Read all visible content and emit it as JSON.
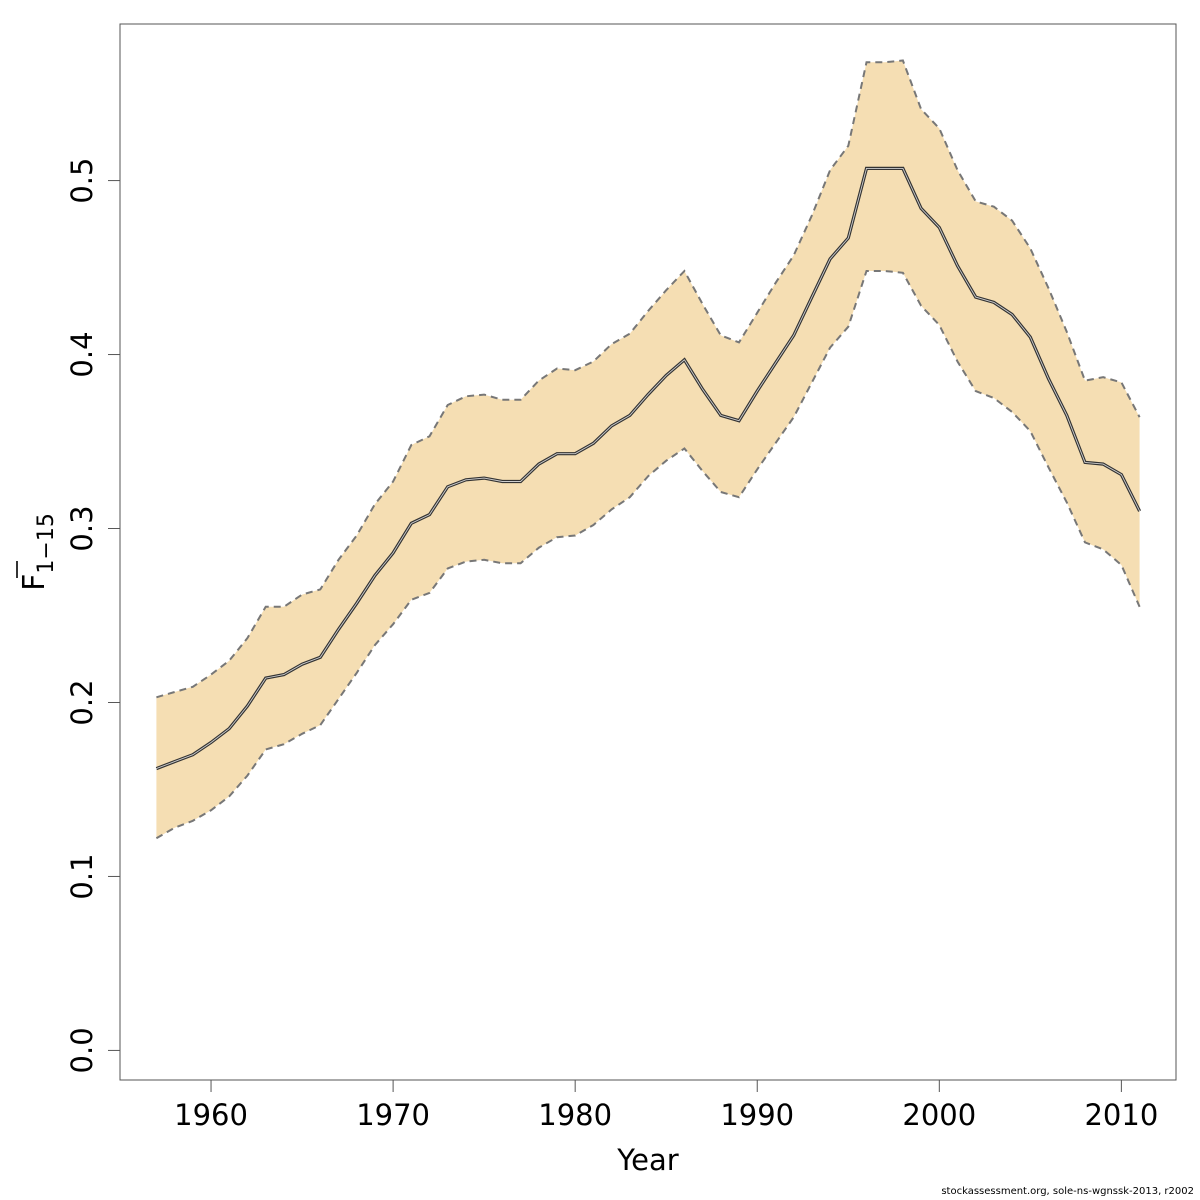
{
  "chart_data": {
    "type": "area",
    "xlabel": "Year",
    "ylabel_main": "F",
    "ylabel_sub": "1−15",
    "xlim": [
      1955,
      2013
    ],
    "ylim": [
      -0.017,
      0.59
    ],
    "xticks": [
      1960,
      1970,
      1980,
      1990,
      2000,
      2010
    ],
    "xtick_labels": [
      "1960",
      "1970",
      "1980",
      "1990",
      "2000",
      "2010"
    ],
    "yticks": [
      0.0,
      0.1,
      0.2,
      0.3,
      0.4,
      0.5
    ],
    "ytick_labels": [
      "0.0",
      "0.1",
      "0.2",
      "0.3",
      "0.4",
      "0.5"
    ],
    "grid": false,
    "colors": {
      "band": "#f5deb3",
      "line": "#333333",
      "bound": "#777777"
    },
    "x": [
      1957,
      1958,
      1959,
      1960,
      1961,
      1962,
      1963,
      1964,
      1965,
      1966,
      1967,
      1968,
      1969,
      1970,
      1971,
      1972,
      1973,
      1974,
      1975,
      1976,
      1977,
      1978,
      1979,
      1980,
      1981,
      1982,
      1983,
      1984,
      1985,
      1986,
      1987,
      1988,
      1989,
      1990,
      1991,
      1992,
      1993,
      1994,
      1995,
      1996,
      1997,
      1998,
      1999,
      2000,
      2001,
      2002,
      2003,
      2004,
      2005,
      2006,
      2007,
      2008,
      2009,
      2010,
      2011
    ],
    "series": [
      {
        "role": "estimate",
        "values": [
          0.162,
          0.166,
          0.17,
          0.177,
          0.185,
          0.198,
          0.214,
          0.216,
          0.222,
          0.226,
          0.242,
          0.257,
          0.273,
          0.286,
          0.303,
          0.308,
          0.324,
          0.328,
          0.329,
          0.327,
          0.327,
          0.337,
          0.343,
          0.343,
          0.349,
          0.359,
          0.365,
          0.377,
          0.388,
          0.397,
          0.38,
          0.365,
          0.362,
          0.379,
          0.395,
          0.411,
          0.433,
          0.455,
          0.467,
          0.507,
          0.507,
          0.507,
          0.484,
          0.473,
          0.451,
          0.433,
          0.43,
          0.423,
          0.41,
          0.386,
          0.365,
          0.338,
          0.337,
          0.331,
          0.31
        ]
      },
      {
        "role": "upper",
        "values": [
          0.203,
          0.206,
          0.209,
          0.216,
          0.224,
          0.237,
          0.255,
          0.255,
          0.262,
          0.265,
          0.282,
          0.296,
          0.314,
          0.327,
          0.348,
          0.353,
          0.371,
          0.376,
          0.377,
          0.374,
          0.374,
          0.385,
          0.392,
          0.391,
          0.396,
          0.406,
          0.412,
          0.425,
          0.437,
          0.448,
          0.429,
          0.411,
          0.407,
          0.424,
          0.441,
          0.457,
          0.48,
          0.506,
          0.52,
          0.568,
          0.568,
          0.569,
          0.541,
          0.53,
          0.506,
          0.488,
          0.485,
          0.477,
          0.461,
          0.438,
          0.413,
          0.385,
          0.387,
          0.384,
          0.364
        ]
      },
      {
        "role": "lower",
        "values": [
          0.122,
          0.128,
          0.132,
          0.138,
          0.146,
          0.158,
          0.173,
          0.176,
          0.182,
          0.187,
          0.202,
          0.217,
          0.233,
          0.245,
          0.259,
          0.263,
          0.277,
          0.281,
          0.282,
          0.28,
          0.28,
          0.289,
          0.295,
          0.296,
          0.302,
          0.311,
          0.318,
          0.33,
          0.339,
          0.346,
          0.333,
          0.321,
          0.318,
          0.334,
          0.349,
          0.364,
          0.384,
          0.404,
          0.416,
          0.448,
          0.448,
          0.447,
          0.428,
          0.417,
          0.396,
          0.379,
          0.375,
          0.367,
          0.356,
          0.335,
          0.315,
          0.292,
          0.288,
          0.279,
          0.255
        ]
      }
    ]
  },
  "footer": {
    "credit": "stockassessment.org, sole-ns-wgnssk-2013, r2002"
  }
}
